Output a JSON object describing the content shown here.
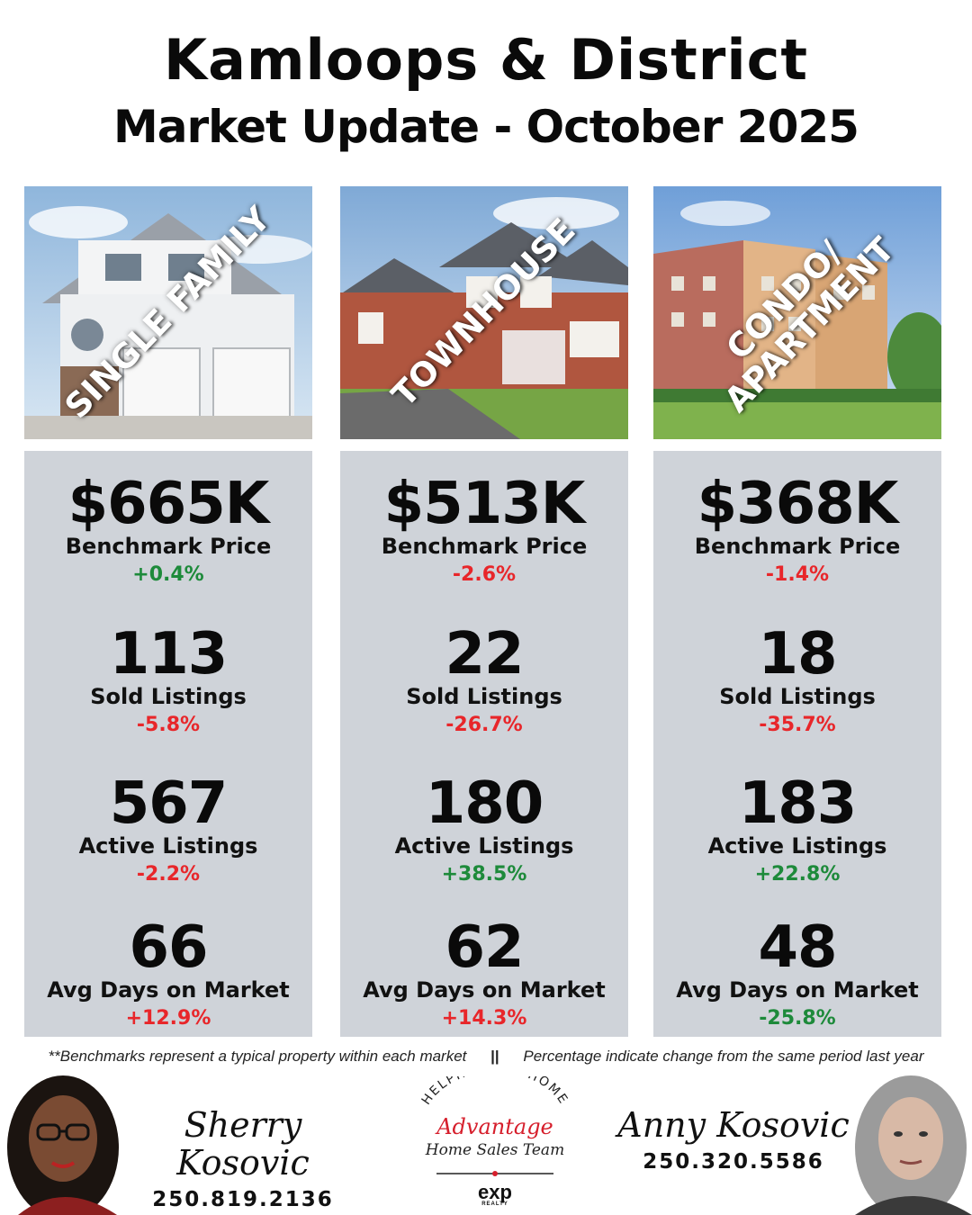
{
  "header": {
    "title": "Kamloops & District",
    "subtitle": "Market Update - October 2025"
  },
  "columns": [
    {
      "photo_label": "SINGLE FAMILY",
      "stats": [
        {
          "value": "$665K",
          "label": "Benchmark Price",
          "change": "+0.4%",
          "direction": "up"
        },
        {
          "value": "113",
          "label": "Sold Listings",
          "change": "-5.8%",
          "direction": "down"
        },
        {
          "value": "567",
          "label": "Active Listings",
          "change": "-2.2%",
          "direction": "down"
        },
        {
          "value": "66",
          "label": "Avg Days on Market",
          "change": "+12.9%",
          "direction": "up-bad"
        }
      ]
    },
    {
      "photo_label": "TOWNHOUSE",
      "stats": [
        {
          "value": "$513K",
          "label": "Benchmark Price",
          "change": "-2.6%",
          "direction": "down"
        },
        {
          "value": "22",
          "label": "Sold Listings",
          "change": "-26.7%",
          "direction": "down"
        },
        {
          "value": "180",
          "label": "Active Listings",
          "change": "+38.5%",
          "direction": "up"
        },
        {
          "value": "62",
          "label": "Avg Days on Market",
          "change": "+14.3%",
          "direction": "up-bad"
        }
      ]
    },
    {
      "photo_label_line1": "CONDO/",
      "photo_label_line2": "APARTMENT",
      "stats": [
        {
          "value": "$368K",
          "label": "Benchmark Price",
          "change": "-1.4%",
          "direction": "down"
        },
        {
          "value": "18",
          "label": "Sold Listings",
          "change": "-35.7%",
          "direction": "down"
        },
        {
          "value": "183",
          "label": "Active Listings",
          "change": "+22.8%",
          "direction": "up"
        },
        {
          "value": "48",
          "label": "Avg Days on Market",
          "change": "-25.8%",
          "direction": "down-good"
        }
      ]
    }
  ],
  "footnote": {
    "left": "**Benchmarks represent a typical property within each market",
    "separator": "||",
    "right": "Percentage indicate change from the same period last year"
  },
  "agents": [
    {
      "name": "Sherry Kosovic",
      "phone": "250.819.2136"
    },
    {
      "name": "Anny Kosovic",
      "phone": "250.320.5586"
    }
  ],
  "logo": {
    "arc_text": "HELPING YOU HOME",
    "brand": "Advantage",
    "team": "Home Sales Team",
    "brokerage": "exp",
    "brokerage_sub": "REALTY"
  },
  "colors": {
    "negative": "#e8262a",
    "positive": "#1d8a3a",
    "panel": "#cfd3d9"
  }
}
